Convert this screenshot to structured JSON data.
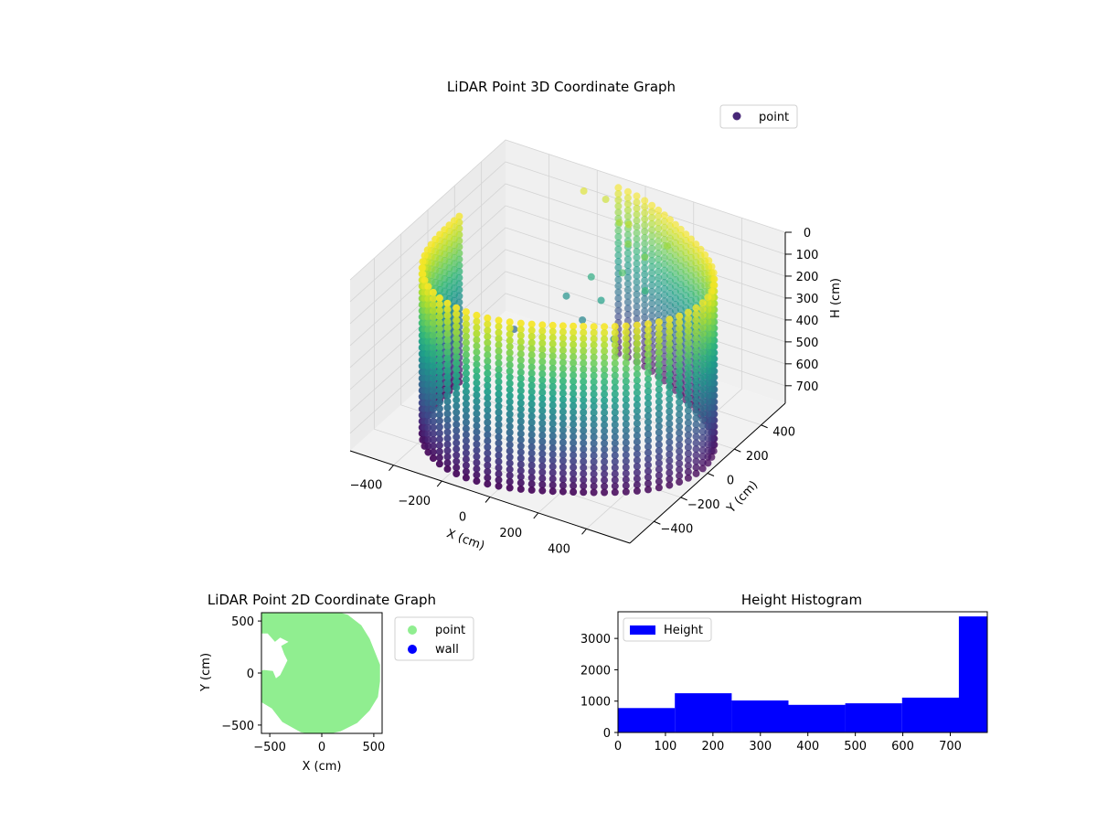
{
  "chart_data": [
    {
      "type": "scatter",
      "projection": "3d",
      "title": "LiDAR Point 3D Coordinate Graph",
      "xlabel": "X (cm)",
      "ylabel": "Y (cm)",
      "zlabel": "H (cm)",
      "xlim": [
        -580,
        580
      ],
      "ylim": [
        -580,
        580
      ],
      "zlim": [
        0,
        780
      ],
      "z_inverted": true,
      "x_ticks": [
        "−400",
        "−200",
        "0",
        "200",
        "400"
      ],
      "x_tick_values": [
        -400,
        -200,
        0,
        200,
        400
      ],
      "y_ticks": [
        "−400",
        "−200",
        "0",
        "200",
        "400"
      ],
      "y_tick_values": [
        -400,
        -200,
        0,
        200,
        400
      ],
      "z_ticks": [
        "0",
        "100",
        "200",
        "300",
        "400",
        "500",
        "600",
        "700"
      ],
      "z_tick_values": [
        0,
        100,
        200,
        300,
        400,
        500,
        600,
        700
      ],
      "colormap": "viridis",
      "color_by": "height",
      "grid": true,
      "legend": {
        "placement": "upper-right",
        "entries": [
          {
            "name": "point",
            "color": "#482878"
          }
        ]
      },
      "series": [
        {
          "name": "point",
          "shape": "cylindrical wall of points",
          "radius": 560,
          "height_range": [
            10,
            770
          ],
          "opening_angle_deg": [
            100,
            175
          ],
          "interior_points": [
            [
              -200,
              480,
              40
            ],
            [
              -120,
              500,
              60
            ],
            [
              -30,
              440,
              100
            ],
            [
              40,
              380,
              140
            ],
            [
              120,
              360,
              160
            ],
            [
              60,
              300,
              220
            ],
            [
              160,
              290,
              260
            ],
            [
              -80,
              320,
              300
            ],
            [
              0,
              250,
              340
            ],
            [
              -150,
              260,
              380
            ],
            [
              -50,
              200,
              420
            ],
            [
              80,
              200,
              460
            ],
            [
              -420,
              -80,
              500
            ],
            [
              -300,
              140,
              520
            ],
            [
              20,
              420,
              80
            ],
            [
              180,
              420,
              120
            ]
          ]
        }
      ]
    },
    {
      "type": "scatter",
      "title": "LiDAR Point 2D Coordinate Graph",
      "xlabel": "X (cm)",
      "ylabel": "Y (cm)",
      "xlim": [
        -580,
        580
      ],
      "ylim": [
        -580,
        580
      ],
      "x_ticks": [
        "−500",
        "0",
        "500"
      ],
      "x_tick_values": [
        -500,
        0,
        500
      ],
      "y_ticks": [
        "−500",
        "0",
        "500"
      ],
      "y_tick_values": [
        -500,
        0,
        500
      ],
      "legend": {
        "placement": "outside-right",
        "entries": [
          {
            "name": "point",
            "color": "#90ee90"
          },
          {
            "name": "wall",
            "color": "#0000ff"
          }
        ]
      },
      "series": [
        {
          "name": "point",
          "color": "#90ee90",
          "radius": 560,
          "outline": [
            [
              -580,
              580
            ],
            [
              -420,
              580
            ],
            [
              -300,
              620
            ],
            [
              0,
              630
            ],
            [
              250,
              560
            ],
            [
              380,
              460
            ],
            [
              460,
              330
            ],
            [
              560,
              80
            ],
            [
              560,
              -80
            ],
            [
              540,
              -230
            ],
            [
              460,
              -360
            ],
            [
              340,
              -480
            ],
            [
              180,
              -560
            ],
            [
              0,
              -600
            ],
            [
              -200,
              -570
            ],
            [
              -380,
              -470
            ],
            [
              -480,
              -340
            ],
            [
              -580,
              -280
            ],
            [
              -580,
              20
            ],
            [
              -560,
              30
            ],
            [
              -470,
              20
            ],
            [
              -440,
              -50
            ],
            [
              -400,
              -20
            ],
            [
              -360,
              60
            ],
            [
              -330,
              120
            ],
            [
              -360,
              180
            ],
            [
              -390,
              260
            ],
            [
              -320,
              300
            ],
            [
              -400,
              340
            ],
            [
              -450,
              300
            ],
            [
              -520,
              380
            ],
            [
              -580,
              380
            ]
          ]
        },
        {
          "name": "wall",
          "color": "#0000ff",
          "points": []
        }
      ]
    },
    {
      "type": "bar",
      "subtype": "histogram",
      "title": "Height Histogram",
      "xlabel": "",
      "ylabel": "",
      "xlim": [
        0,
        778
      ],
      "ylim": [
        0,
        3850
      ],
      "x_ticks": [
        "0",
        "100",
        "200",
        "300",
        "400",
        "500",
        "600",
        "700"
      ],
      "x_tick_values": [
        0,
        100,
        200,
        300,
        400,
        500,
        600,
        700
      ],
      "y_ticks": [
        "0",
        "1000",
        "2000",
        "3000"
      ],
      "y_tick_values": [
        0,
        1000,
        2000,
        3000
      ],
      "bin_edges": [
        0,
        119.7,
        239.4,
        359.1,
        478.8,
        598.5,
        718.2,
        778
      ],
      "values": [
        780,
        1250,
        1020,
        880,
        930,
        1110,
        3700
      ],
      "legend": {
        "placement": "upper-left",
        "entries": [
          {
            "name": "Height",
            "color": "#0000ff"
          }
        ]
      },
      "series": [
        {
          "name": "Height",
          "color": "#0000ff"
        }
      ]
    }
  ]
}
